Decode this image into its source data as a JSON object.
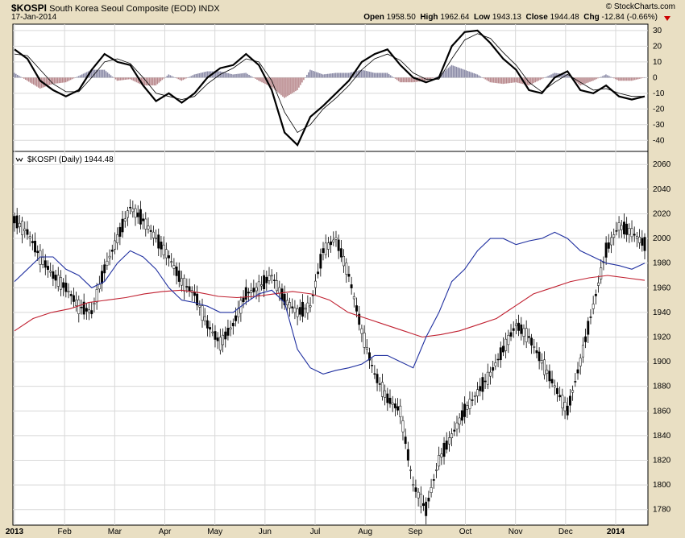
{
  "header": {
    "symbol": "$KOSPI",
    "name": "South Korea Seoul Composite (EOD)",
    "exchange": "INDX",
    "date": "17-Jan-2014",
    "open_label": "Open",
    "open": "1958.50",
    "high_label": "High",
    "high": "1962.64",
    "low_label": "Low",
    "low": "1943.13",
    "close_label": "Close",
    "close": "1944.48",
    "chg_label": "Chg",
    "chg": "-12.84 (-0.66%)",
    "copyright": "© StockCharts.com"
  },
  "colors": {
    "background": "#e9dfc3",
    "panel": "#ffffff",
    "grid": "#d8d8d8",
    "ma_short": "#2030a0",
    "ma_long": "#c02030",
    "hist_pos": "#8c8ca8",
    "hist_neg": "#b8888c",
    "down_arrow": "#cc0000"
  },
  "chart_data": [
    {
      "type": "line",
      "panel": "indicator",
      "ylim": [
        -45,
        32
      ],
      "yticks": [
        30,
        20,
        10,
        0,
        -10,
        -20,
        -30,
        -40
      ],
      "series": [
        {
          "values": [
            18,
            12,
            -2,
            -8,
            -12,
            -8,
            5,
            15,
            10,
            8,
            -5,
            -15,
            -10,
            -16,
            -10,
            0,
            6,
            8,
            15,
            8,
            -8,
            -35,
            -43,
            -25,
            -18,
            -10,
            -2,
            10,
            15,
            18,
            8,
            0,
            -3,
            0,
            20,
            29,
            30,
            22,
            12,
            5,
            -8,
            -10,
            0,
            4,
            -8,
            -10,
            -5,
            -12,
            -14,
            -12
          ]
        },
        {
          "values": [
            15,
            14,
            5,
            -4,
            -9,
            -9,
            0,
            10,
            12,
            9,
            0,
            -10,
            -12,
            -14,
            -12,
            -4,
            2,
            6,
            12,
            10,
            -2,
            -22,
            -35,
            -30,
            -20,
            -13,
            -5,
            5,
            12,
            15,
            11,
            3,
            -1,
            -1,
            12,
            24,
            28,
            25,
            16,
            8,
            -3,
            -9,
            -3,
            2,
            -3,
            -8,
            -7,
            -10,
            -12,
            -12
          ]
        },
        {
          "values": [
            3,
            -2,
            -7,
            -4,
            -3,
            1,
            5,
            5,
            -2,
            -1,
            -5,
            -5,
            2,
            -2,
            2,
            4,
            4,
            2,
            3,
            -2,
            -6,
            -13,
            -8,
            5,
            2,
            3,
            3,
            5,
            3,
            3,
            -3,
            -3,
            -2,
            1,
            8,
            5,
            2,
            -3,
            -4,
            -3,
            -5,
            -1,
            3,
            2,
            -5,
            -2,
            2,
            -2,
            -2,
            0
          ]
        }
      ]
    },
    {
      "type": "line",
      "panel": "price",
      "title": "$KOSPI (Daily) 1944.48",
      "ylim": [
        1770,
        2068
      ],
      "yticks": [
        2060,
        2040,
        2020,
        2000,
        1980,
        1960,
        1940,
        1920,
        1900,
        1880,
        1860,
        1840,
        1820,
        1800,
        1780
      ],
      "x_ticks": [
        "2013",
        "Feb",
        "Mar",
        "Apr",
        "May",
        "Jun",
        "Jul",
        "Aug",
        "Sep",
        "Oct",
        "Nov",
        "Dec",
        "2014"
      ],
      "series": [
        {
          "values": [
            2015,
            2005,
            1985,
            1970,
            1960,
            1945,
            1940,
            1975,
            2000,
            2025,
            2015,
            2000,
            1985,
            1965,
            1955,
            1930,
            1915,
            1930,
            1955,
            1960,
            1970,
            1950,
            1940,
            1945,
            1990,
            2000,
            1970,
            1925,
            1890,
            1870,
            1860,
            1800,
            1780,
            1820,
            1840,
            1860,
            1875,
            1890,
            1910,
            1930,
            1920,
            1900,
            1880,
            1860,
            1900,
            1945,
            1990,
            2010,
            2005,
            1995
          ]
        },
        {
          "values": [
            1965,
            1975,
            1985,
            1985,
            1975,
            1970,
            1960,
            1965,
            1980,
            1990,
            1985,
            1975,
            1960,
            1950,
            1948,
            1945,
            1940,
            1940,
            1948,
            1955,
            1958,
            1948,
            1910,
            1895,
            1890,
            1893,
            1895,
            1898,
            1905,
            1905,
            1900,
            1895,
            1920,
            1940,
            1965,
            1975,
            1990,
            2000,
            2000,
            1995,
            1998,
            2000,
            2005,
            2000,
            1990,
            1985,
            1980,
            1978,
            1975,
            1980
          ]
        },
        {
          "values": [
            1925,
            1935,
            1940,
            1943,
            1948,
            1950,
            1952,
            1955,
            1957,
            1958,
            1956,
            1953,
            1952,
            1953,
            1955,
            1957,
            1955,
            1950,
            1940,
            1935,
            1930,
            1925,
            1920,
            1922,
            1925,
            1930,
            1935,
            1945,
            1955,
            1960,
            1965,
            1968,
            1970,
            1968,
            1966
          ]
        }
      ]
    }
  ]
}
